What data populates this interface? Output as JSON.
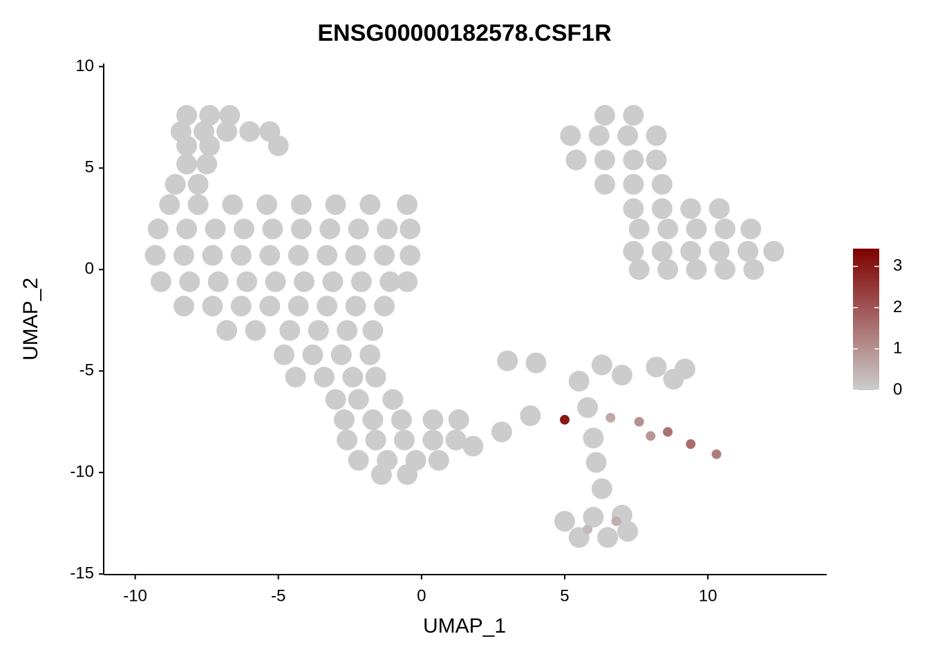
{
  "chart_data": {
    "type": "scatter",
    "title": "ENSG00000182578.CSF1R",
    "x_label": "UMAP_1",
    "y_label": "UMAP_2",
    "xlim": [
      -11.1,
      14.15
    ],
    "ylim": [
      -15.03,
      10.15
    ],
    "xticks": [
      -10,
      -5,
      0,
      5,
      10
    ],
    "yticks": [
      10,
      5,
      0,
      -5,
      -10,
      -15
    ],
    "colorbar": {
      "lim": [
        0,
        3.43
      ],
      "ticks": [
        0,
        1,
        2,
        3
      ],
      "low": "#cccccc",
      "high": "#7f0000"
    },
    "x": [
      -8.2,
      -7.4,
      -6.7,
      -8.4,
      -7.6,
      -6.8,
      -6,
      -5.3,
      -8.2,
      -7.4,
      -5,
      -8.2,
      -7.5,
      -8.6,
      -7.8,
      -8.8,
      -7.8,
      -6.6,
      -5.4,
      -4.2,
      -3,
      -1.8,
      -0.5,
      -9.2,
      -8.2,
      -7.2,
      -6.2,
      -5.2,
      -4.2,
      -3.2,
      -2.2,
      -1.2,
      -0.4,
      -9.3,
      -8.3,
      -7.3,
      -6.3,
      -5.3,
      -4.3,
      -3.3,
      -2.3,
      -1.3,
      -0.4,
      -9.1,
      -8.1,
      -7.1,
      -6.1,
      -5.1,
      -4.1,
      -3.1,
      -2.1,
      -1.1,
      -0.5,
      -8.3,
      -7.3,
      -6.3,
      -5.3,
      -4.3,
      -3.3,
      -2.3,
      -1.3,
      -6.8,
      -5.8,
      -4.6,
      -3.6,
      -2.6,
      -1.7,
      -4.8,
      -3.8,
      -2.8,
      -1.8,
      -4.4,
      -3.4,
      -2.4,
      -1.6,
      -3,
      -2.2,
      -1,
      -2.7,
      -1.7,
      -0.7,
      0.4,
      1.3,
      -2.6,
      -1.6,
      -0.6,
      0.4,
      1.2,
      -2.2,
      -1.2,
      -0.2,
      0.6,
      -1.4,
      -0.5,
      6.4,
      7.4,
      5.2,
      6.2,
      7.2,
      8.2,
      5.4,
      6.4,
      7.4,
      8.2,
      6.4,
      7.4,
      8.4,
      7.4,
      8.4,
      9.4,
      10.4,
      7.6,
      8.6,
      9.6,
      10.6,
      11.5,
      7.4,
      8.4,
      9.4,
      10.4,
      11.4,
      12.3,
      7.6,
      8.6,
      9.6,
      10.6,
      11.6,
      1.8,
      2.8,
      3.8,
      3,
      4,
      5.5,
      6.3,
      7,
      8.2,
      9.2,
      8.8,
      5.8,
      6,
      6.1,
      6.3,
      5,
      6,
      7,
      5.5,
      6.5,
      7.2,
      5,
      6.6,
      7.6,
      8.6,
      9.4,
      10.3,
      8,
      6.8,
      5.8
    ],
    "y": [
      7.6,
      7.6,
      7.6,
      6.8,
      6.8,
      6.8,
      6.8,
      6.8,
      6.1,
      6.1,
      6.1,
      5.2,
      5.2,
      4.2,
      4.2,
      3.2,
      3.2,
      3.2,
      3.2,
      3.2,
      3.2,
      3.2,
      3.2,
      2,
      2,
      2,
      2,
      2,
      2,
      2,
      2,
      2,
      2,
      0.7,
      0.7,
      0.7,
      0.7,
      0.7,
      0.7,
      0.7,
      0.7,
      0.7,
      0.7,
      -0.6,
      -0.6,
      -0.6,
      -0.6,
      -0.6,
      -0.6,
      -0.6,
      -0.6,
      -0.6,
      -0.6,
      -1.8,
      -1.8,
      -1.8,
      -1.8,
      -1.8,
      -1.8,
      -1.8,
      -1.8,
      -3,
      -3,
      -3,
      -3,
      -3,
      -3,
      -4.2,
      -4.2,
      -4.2,
      -4.2,
      -5.3,
      -5.3,
      -5.3,
      -5.3,
      -6.4,
      -6.4,
      -6.4,
      -7.4,
      -7.4,
      -7.4,
      -7.4,
      -7.4,
      -8.4,
      -8.4,
      -8.4,
      -8.4,
      -8.4,
      -9.4,
      -9.4,
      -9.4,
      -9.4,
      -10.1,
      -10.1,
      7.6,
      7.6,
      6.6,
      6.6,
      6.6,
      6.6,
      5.4,
      5.4,
      5.4,
      5.4,
      4.2,
      4.2,
      4.2,
      3,
      3,
      3,
      3,
      2,
      2,
      2,
      2,
      2,
      0.9,
      0.9,
      0.9,
      0.9,
      0.9,
      0.9,
      0,
      0,
      0,
      0,
      0,
      -8.7,
      -8,
      -7.2,
      -4.5,
      -4.6,
      -5.5,
      -4.7,
      -5.2,
      -4.8,
      -4.9,
      -5.4,
      -6.8,
      -8.3,
      -9.5,
      -10.8,
      -12.4,
      -12.2,
      -12.1,
      -13.2,
      -13.2,
      -12.9,
      -7.4,
      -7.3,
      -7.5,
      -8,
      -8.6,
      -9.1,
      -8.2,
      -12.4,
      -12.8
    ],
    "values": [
      0,
      0,
      0,
      0,
      0,
      0,
      0,
      0,
      0,
      0,
      0,
      0,
      0,
      0,
      0,
      0,
      0,
      0,
      0,
      0,
      0,
      0,
      0,
      0,
      0,
      0,
      0,
      0,
      0,
      0,
      0,
      0,
      0,
      0,
      0,
      0,
      0,
      0,
      0,
      0,
      0,
      0,
      0,
      0,
      0,
      0,
      0,
      0,
      0,
      0,
      0,
      0,
      0,
      0,
      0,
      0,
      0,
      0,
      0,
      0,
      0,
      0,
      0,
      0,
      0,
      0,
      0,
      0,
      0,
      0,
      0,
      0,
      0,
      0,
      0,
      0,
      0,
      0,
      0,
      0,
      0,
      0,
      0,
      0,
      0,
      0,
      0,
      0,
      0,
      0,
      0,
      0,
      0,
      0,
      0,
      0,
      0,
      0,
      0,
      0,
      0,
      0,
      0,
      0,
      0,
      0,
      0,
      0,
      0,
      0,
      0,
      0,
      0,
      0,
      0,
      0,
      0,
      0,
      0,
      0,
      0,
      0,
      0,
      0,
      0,
      0,
      0,
      0,
      0,
      0,
      0,
      0,
      0,
      0,
      0,
      0,
      0,
      0,
      0,
      0,
      0,
      0,
      0,
      0,
      0,
      0,
      0,
      0,
      3.0,
      0.6,
      1.0,
      1.5,
      1.6,
      1.3,
      0.9,
      0.5,
      0.3
    ]
  }
}
